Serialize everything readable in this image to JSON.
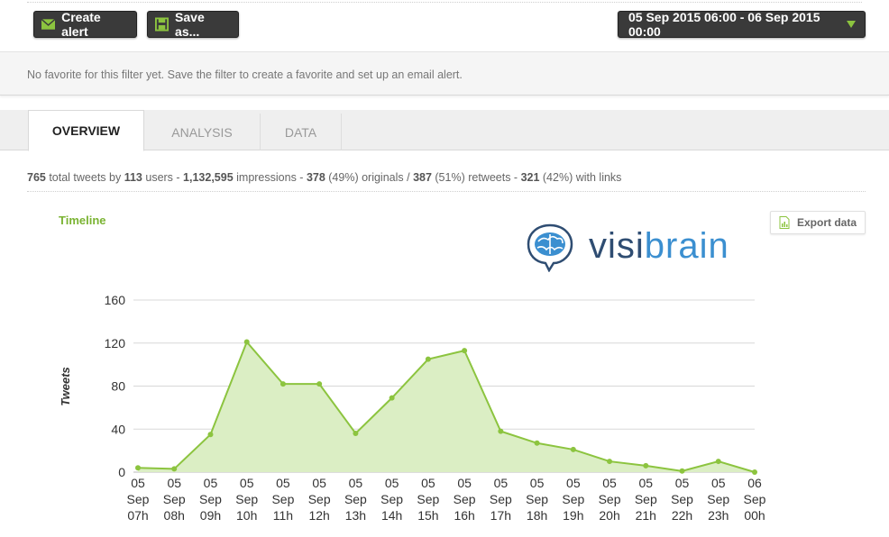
{
  "toolbar": {
    "create_alert_label": "Create alert",
    "save_as_label": "Save as...",
    "date_range_label": "05 Sep 2015 06:00 - 06 Sep 2015 00:00"
  },
  "notice": {
    "text": "No favorite for this filter yet. Save the filter to create a favorite and set up an email alert."
  },
  "tabs": [
    {
      "label": "OVERVIEW",
      "active": true
    },
    {
      "label": "ANALYSIS",
      "active": false
    },
    {
      "label": "DATA",
      "active": false
    }
  ],
  "stats": {
    "total_tweets": "765",
    "total_tweets_label": " total tweets by ",
    "users": "113",
    "users_label": " users - ",
    "impressions": "1,132,595",
    "impressions_label": " impressions - ",
    "originals": "378",
    "originals_label": " (49%) originals / ",
    "retweets": "387",
    "retweets_label": " (51%) retweets - ",
    "links": "321",
    "links_label": " (42%) with links"
  },
  "timeline": {
    "title": "Timeline",
    "export_label": "Export data",
    "logo_part1": "visi",
    "logo_part2": "brain"
  },
  "colors": {
    "accent": "#8cc43f",
    "line": "#8cc43f",
    "fill": "#dbeec4",
    "dark_button": "#3a3a3a"
  },
  "chart_data": {
    "type": "area",
    "title": "Timeline",
    "xlabel": "",
    "ylabel": "Tweets",
    "ylim": [
      0,
      160
    ],
    "yticks": [
      0,
      40,
      80,
      120,
      160
    ],
    "grid": true,
    "categories": [
      [
        "05",
        "Sep",
        "07h"
      ],
      [
        "05",
        "Sep",
        "08h"
      ],
      [
        "05",
        "Sep",
        "09h"
      ],
      [
        "05",
        "Sep",
        "10h"
      ],
      [
        "05",
        "Sep",
        "11h"
      ],
      [
        "05",
        "Sep",
        "12h"
      ],
      [
        "05",
        "Sep",
        "13h"
      ],
      [
        "05",
        "Sep",
        "14h"
      ],
      [
        "05",
        "Sep",
        "15h"
      ],
      [
        "05",
        "Sep",
        "16h"
      ],
      [
        "05",
        "Sep",
        "17h"
      ],
      [
        "05",
        "Sep",
        "18h"
      ],
      [
        "05",
        "Sep",
        "19h"
      ],
      [
        "05",
        "Sep",
        "20h"
      ],
      [
        "05",
        "Sep",
        "21h"
      ],
      [
        "05",
        "Sep",
        "22h"
      ],
      [
        "05",
        "Sep",
        "23h"
      ],
      [
        "06",
        "Sep",
        "00h"
      ]
    ],
    "values": [
      4,
      3,
      35,
      121,
      82,
      82,
      36,
      69,
      105,
      113,
      38,
      27,
      21,
      10,
      6,
      1,
      10,
      0
    ]
  }
}
